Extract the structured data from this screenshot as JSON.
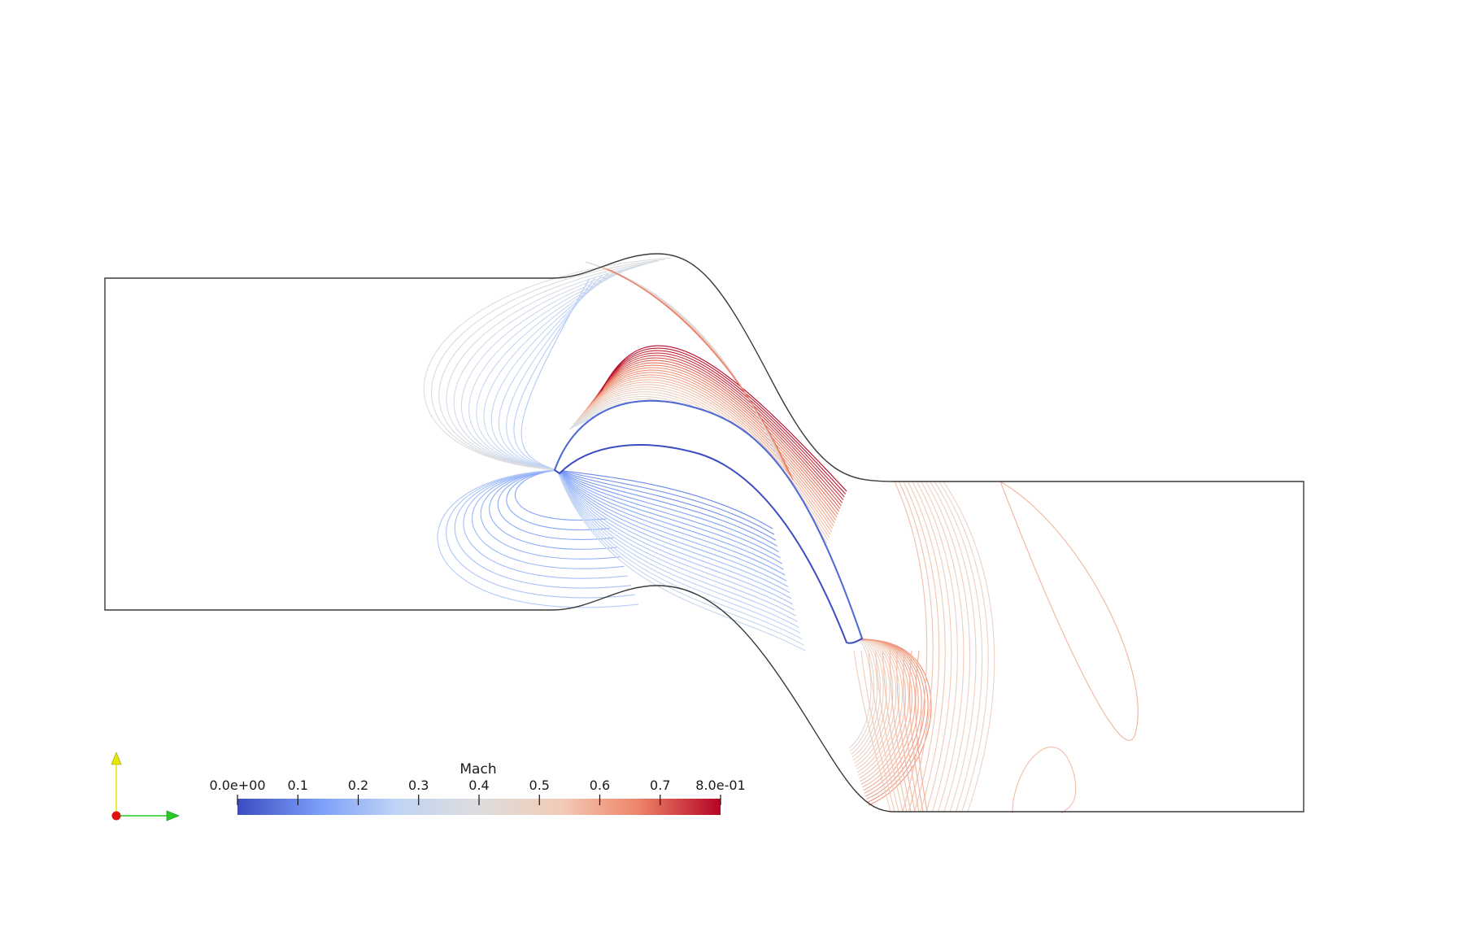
{
  "colorbar": {
    "title": "Mach",
    "tick_labels": [
      "0.0e+00",
      "0.1",
      "0.2",
      "0.3",
      "0.4",
      "0.5",
      "0.6",
      "0.7",
      "8.0e-01"
    ],
    "tick_values": [
      0,
      0.1,
      0.2,
      0.3,
      0.4,
      0.5,
      0.6,
      0.7,
      0.8
    ],
    "range": [
      0,
      0.8
    ],
    "colormap": [
      "#3b4cc0",
      "#7b9ff9",
      "#c0d4f5",
      "#dddddd",
      "#f2cbb7",
      "#ee8468",
      "#b40426"
    ]
  },
  "axes_triad": {
    "y_axis_color": "#e6e600",
    "x_axis_color": "#22cc22",
    "z_axis_color": "#dd1111"
  },
  "domain": {
    "outline_color": "#3a3a3a",
    "blade_pressure_side_color": "#3b4cc0",
    "suction_side_peak_color": "#b40426"
  }
}
